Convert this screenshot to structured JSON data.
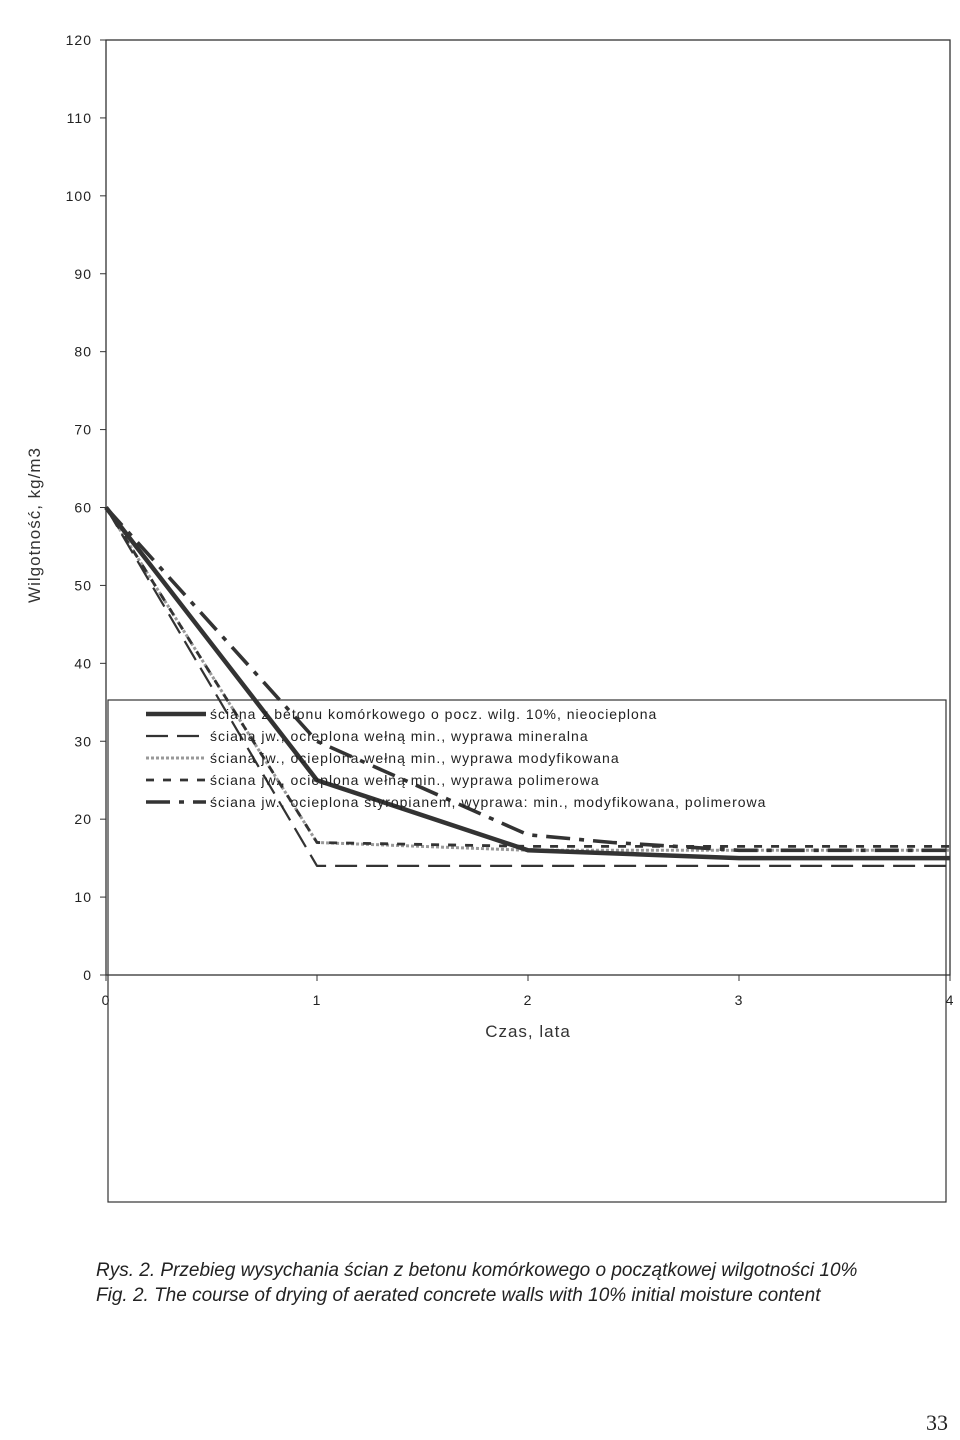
{
  "chart_data": {
    "type": "line",
    "xlabel": "Czas, lata",
    "ylabel": "Wilgotność, kg/m3",
    "xlim": [
      0,
      4
    ],
    "ylim": [
      0,
      120
    ],
    "xticks": [
      0,
      1,
      2,
      3,
      4
    ],
    "yticks": [
      0,
      10,
      20,
      30,
      40,
      50,
      60,
      70,
      80,
      90,
      100,
      110,
      120
    ],
    "grid": false,
    "legend_position": "bottom",
    "series": [
      {
        "name": "ściana z betonu komórkowego o pocz. wilg. 10%, nieocieplona",
        "style": "solid-thick",
        "color": "#333333",
        "x": [
          0,
          1,
          2,
          3,
          4
        ],
        "y": [
          60,
          25,
          16,
          15,
          15
        ]
      },
      {
        "name": "ściana jw., ocieplona wełną min., wyprawa mineralna",
        "style": "long-dash",
        "color": "#333333",
        "x": [
          0,
          1,
          2,
          3,
          4
        ],
        "y": [
          60,
          14,
          14,
          14,
          14
        ]
      },
      {
        "name": "ściana jw., ocieplona wełną min., wyprawa modyfikowana",
        "style": "dotted-light",
        "color": "#999999",
        "x": [
          0,
          1,
          2,
          3,
          4
        ],
        "y": [
          60,
          17,
          16,
          16,
          16
        ]
      },
      {
        "name": "ściana jw., ocieplona wełną min., wyprawa polimerowa",
        "style": "short-dash",
        "color": "#333333",
        "x": [
          0,
          1,
          2,
          3,
          4
        ],
        "y": [
          60,
          17,
          16.5,
          16.5,
          16.5
        ]
      },
      {
        "name": "ściana jw., ocieplona styropianem, wyprawa: min., modyfikowana, polimerowa",
        "style": "dash-dot",
        "color": "#333333",
        "x": [
          0,
          1,
          2,
          2.4,
          3,
          4
        ],
        "y": [
          60,
          30,
          18,
          17,
          16,
          16
        ]
      }
    ]
  },
  "caption": {
    "pl": "Rys. 2. Przebieg wysychania ścian z betonu komórkowego o początkowej wilgotności 10%",
    "en": "Fig. 2. The course of drying of aerated concrete walls with 10% initial moisture content"
  },
  "page_number": "33"
}
